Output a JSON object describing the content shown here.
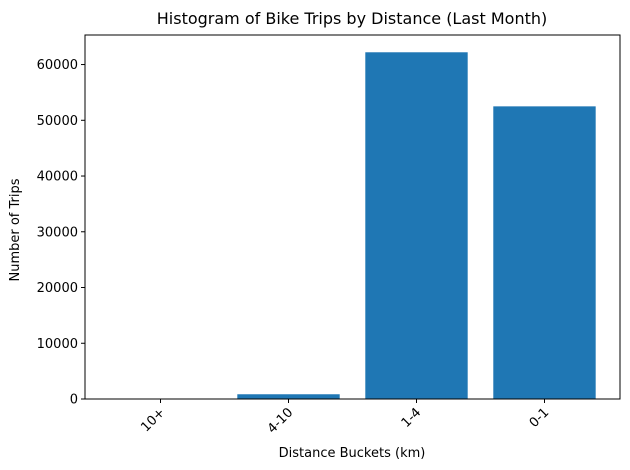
{
  "chart_data": {
    "type": "bar",
    "title": "Histogram of Bike Trips by Distance (Last Month)",
    "xlabel": "Distance Buckets (km)",
    "ylabel": "Number of Trips",
    "categories": [
      "10+",
      "4-10",
      "1-4",
      "0-1"
    ],
    "values": [
      60,
      850,
      62200,
      52500
    ],
    "ylim": [
      0,
      65300
    ],
    "yticks": [
      0,
      10000,
      20000,
      30000,
      40000,
      50000,
      60000
    ],
    "color": "#1f77b4",
    "grid": false,
    "legend": "none",
    "xtick_rotation": -45
  }
}
